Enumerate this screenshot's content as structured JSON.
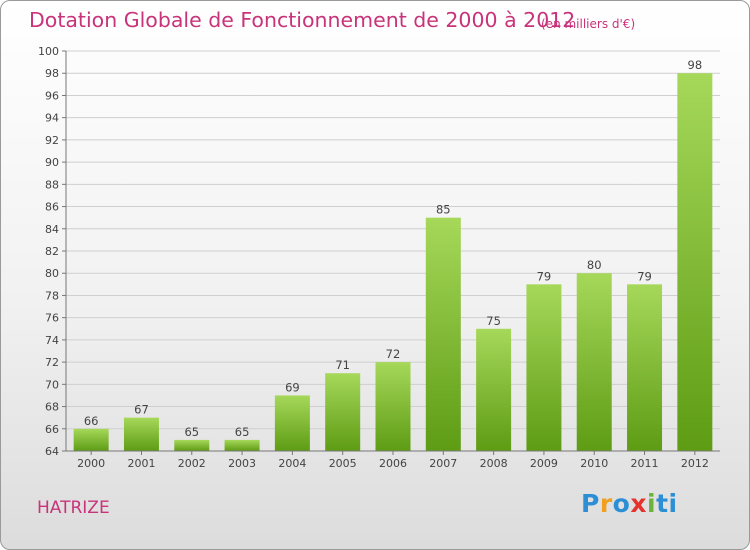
{
  "header": {
    "title": "Dotation Globale de Fonctionnement de 2000 à 2012",
    "subtitle": "(en milliers d'€)"
  },
  "footer": {
    "commune": "HATRIZE",
    "logo_letters": [
      "P",
      "r",
      "o",
      "x",
      "i",
      "ti"
    ]
  },
  "colors": {
    "title": "#c8337a",
    "bar_top": "#a6d85a",
    "bar_bottom": "#5e9c14",
    "grid": "#cfcfcf"
  },
  "chart_data": {
    "type": "bar",
    "title": "Dotation Globale de Fonctionnement de 2000 à 2012",
    "subtitle": "(en milliers d'€)",
    "xlabel": "",
    "ylabel": "",
    "categories": [
      "2000",
      "2001",
      "2002",
      "2003",
      "2004",
      "2005",
      "2006",
      "2007",
      "2008",
      "2009",
      "2010",
      "2011",
      "2012"
    ],
    "values": [
      66,
      67,
      65,
      65,
      69,
      71,
      72,
      85,
      75,
      79,
      80,
      79,
      98
    ],
    "ylim": [
      64,
      100
    ],
    "yticks": [
      64,
      66,
      68,
      70,
      72,
      74,
      76,
      78,
      80,
      82,
      84,
      86,
      88,
      90,
      92,
      94,
      96,
      98,
      100
    ],
    "grid": true
  }
}
